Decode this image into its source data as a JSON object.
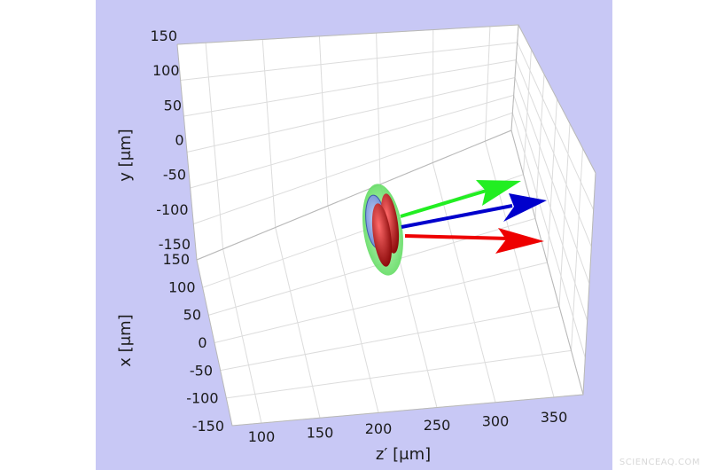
{
  "colors": {
    "backdrop": "#c8c8f5",
    "pane": "#ffffff",
    "grid": "#dcdcdc",
    "arrow_green": "#22ee22",
    "arrow_blue": "#0000cc",
    "arrow_red": "#ee0000",
    "ellipsoid_green": "#99ee99",
    "ellipsoid_blue": "#8fa8e0",
    "ellipsoid_red": "#c41a1a"
  },
  "plot": {
    "axes": {
      "y": {
        "label": "y [μm]",
        "ticks": [
          "150",
          "100",
          "50",
          "0",
          "-50",
          "-100",
          "-150"
        ],
        "range": [
          -150,
          150
        ]
      },
      "x": {
        "label": "x [μm]",
        "ticks": [
          "150",
          "100",
          "50",
          "0",
          "-50",
          "-100",
          "-150"
        ],
        "range": [
          -150,
          150
        ]
      },
      "z": {
        "label": "z′ [μm]",
        "ticks": [
          "100",
          "150",
          "200",
          "250",
          "300",
          "350"
        ],
        "range": [
          75,
          375
        ]
      }
    },
    "arrows": [
      {
        "name": "green-arrow",
        "color": "#22ee22"
      },
      {
        "name": "blue-arrow",
        "color": "#0000cc"
      },
      {
        "name": "red-arrow",
        "color": "#ee0000"
      }
    ],
    "watermark": "SCIENCEAQ.COM"
  }
}
